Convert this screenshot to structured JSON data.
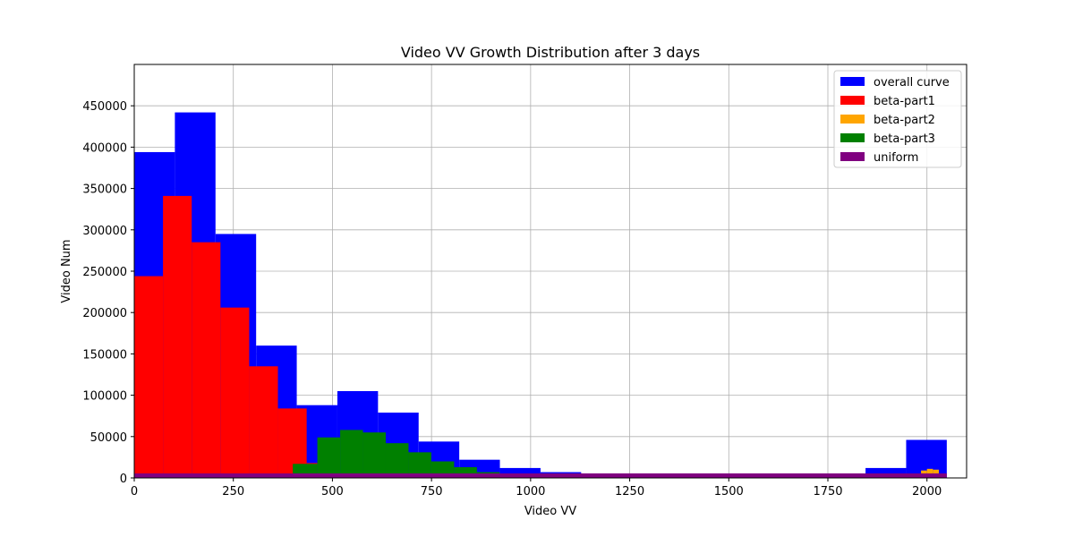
{
  "chart_data": {
    "type": "bar",
    "subtype": "histogram",
    "title": "Video VV Growth Distribution after 3 days",
    "xlabel": "Video VV",
    "ylabel": "Video Num",
    "xlim": [
      0,
      2100
    ],
    "ylim": [
      0,
      500000
    ],
    "xticks": [
      0,
      250,
      500,
      750,
      1000,
      1250,
      1500,
      1750,
      2000
    ],
    "yticks": [
      0,
      50000,
      100000,
      150000,
      200000,
      250000,
      300000,
      350000,
      400000,
      450000
    ],
    "grid": true,
    "legend_position": "top-right",
    "series": [
      {
        "name": "overall curve",
        "color": "#0000ff",
        "bin_width": 102.5,
        "bins": [
          {
            "x0": 0,
            "x1": 102.5,
            "value": 394000
          },
          {
            "x0": 102.5,
            "x1": 205,
            "value": 442000
          },
          {
            "x0": 205,
            "x1": 307.5,
            "value": 295000
          },
          {
            "x0": 307.5,
            "x1": 410,
            "value": 160000
          },
          {
            "x0": 410,
            "x1": 512.5,
            "value": 88000
          },
          {
            "x0": 512.5,
            "x1": 615,
            "value": 105000
          },
          {
            "x0": 615,
            "x1": 717.5,
            "value": 79000
          },
          {
            "x0": 717.5,
            "x1": 820,
            "value": 44000
          },
          {
            "x0": 820,
            "x1": 922.5,
            "value": 22000
          },
          {
            "x0": 922.5,
            "x1": 1025,
            "value": 12000
          },
          {
            "x0": 1025,
            "x1": 1127.5,
            "value": 7000
          },
          {
            "x0": 1127.5,
            "x1": 1230,
            "value": 5000
          },
          {
            "x0": 1230,
            "x1": 1332.5,
            "value": 5000
          },
          {
            "x0": 1332.5,
            "x1": 1435,
            "value": 5000
          },
          {
            "x0": 1435,
            "x1": 1537.5,
            "value": 5000
          },
          {
            "x0": 1537.5,
            "x1": 1640,
            "value": 5000
          },
          {
            "x0": 1640,
            "x1": 1742.5,
            "value": 5000
          },
          {
            "x0": 1742.5,
            "x1": 1845,
            "value": 5000
          },
          {
            "x0": 1845,
            "x1": 1947.5,
            "value": 12000
          },
          {
            "x0": 1947.5,
            "x1": 2050,
            "value": 46000
          }
        ]
      },
      {
        "name": "beta-part1",
        "color": "#ff0000",
        "bin_width": 72.5,
        "bins": [
          {
            "x0": 0,
            "x1": 72.5,
            "value": 244000
          },
          {
            "x0": 72.5,
            "x1": 145,
            "value": 341000
          },
          {
            "x0": 145,
            "x1": 217.5,
            "value": 285000
          },
          {
            "x0": 217.5,
            "x1": 290,
            "value": 206000
          },
          {
            "x0": 290,
            "x1": 362.5,
            "value": 135000
          },
          {
            "x0": 362.5,
            "x1": 435,
            "value": 84000
          },
          {
            "x0": 435,
            "x1": 462,
            "value": 18000
          }
        ]
      },
      {
        "name": "beta-part2",
        "color": "#ffa500",
        "bin_width": 15,
        "bins": [
          {
            "x0": 1970,
            "x1": 1985,
            "value": 4000
          },
          {
            "x0": 1985,
            "x1": 2000,
            "value": 9000
          },
          {
            "x0": 2000,
            "x1": 2015,
            "value": 11000
          },
          {
            "x0": 2015,
            "x1": 2030,
            "value": 10000
          },
          {
            "x0": 2030,
            "x1": 2045,
            "value": 3000
          }
        ]
      },
      {
        "name": "beta-part3",
        "color": "#008000",
        "bin_width": 57.5,
        "bins": [
          {
            "x0": 400,
            "x1": 462,
            "value": 17000
          },
          {
            "x0": 462,
            "x1": 519.5,
            "value": 49000
          },
          {
            "x0": 519.5,
            "x1": 577,
            "value": 58000
          },
          {
            "x0": 577,
            "x1": 634.5,
            "value": 55000
          },
          {
            "x0": 634.5,
            "x1": 692,
            "value": 42000
          },
          {
            "x0": 692,
            "x1": 749.5,
            "value": 31000
          },
          {
            "x0": 749.5,
            "x1": 807,
            "value": 20000
          },
          {
            "x0": 807,
            "x1": 864.5,
            "value": 13000
          },
          {
            "x0": 864.5,
            "x1": 922,
            "value": 7000
          },
          {
            "x0": 922,
            "x1": 979.5,
            "value": 3000
          }
        ]
      },
      {
        "name": "uniform",
        "color": "#800080",
        "bin_width": 102.5,
        "bins": [
          {
            "x0": 0,
            "x1": 2050,
            "value": 5500
          }
        ]
      }
    ]
  }
}
